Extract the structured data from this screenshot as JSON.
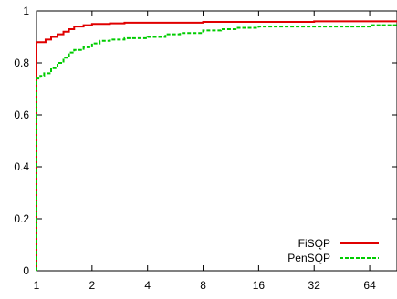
{
  "chart_data": {
    "type": "line",
    "title": "",
    "xlabel": "",
    "ylabel": "",
    "x_scale": "log2",
    "xlim": [
      1,
      90
    ],
    "ylim": [
      0,
      1
    ],
    "x_ticks": [
      1,
      2,
      4,
      8,
      16,
      32,
      64
    ],
    "x_tick_labels": [
      "1",
      "2",
      "4",
      "8",
      "16",
      "32",
      "64"
    ],
    "y_ticks": [
      0,
      0.2,
      0.4,
      0.6,
      0.8,
      1
    ],
    "y_tick_labels": [
      "0",
      "0.2",
      "0.4",
      "0.6",
      "0.8",
      "1"
    ],
    "grid": false,
    "legend_position": "bottom-right",
    "series": [
      {
        "name": "FiSQP",
        "color": "#e00000",
        "dash": "solid",
        "points": [
          [
            1.0,
            0.0
          ],
          [
            1.0,
            0.88
          ],
          [
            1.08,
            0.88
          ],
          [
            1.12,
            0.89
          ],
          [
            1.2,
            0.9
          ],
          [
            1.3,
            0.91
          ],
          [
            1.4,
            0.92
          ],
          [
            1.5,
            0.93
          ],
          [
            1.6,
            0.94
          ],
          [
            1.8,
            0.945
          ],
          [
            2.0,
            0.95
          ],
          [
            2.5,
            0.952
          ],
          [
            3.0,
            0.955
          ],
          [
            4.0,
            0.955
          ],
          [
            8.0,
            0.958
          ],
          [
            16.0,
            0.958
          ],
          [
            32.0,
            0.96
          ],
          [
            90.0,
            0.96
          ]
        ]
      },
      {
        "name": "PenSQP",
        "color": "#00cc00",
        "dash": "dashed",
        "points": [
          [
            1.0,
            0.0
          ],
          [
            1.0,
            0.74
          ],
          [
            1.05,
            0.75
          ],
          [
            1.1,
            0.76
          ],
          [
            1.2,
            0.78
          ],
          [
            1.3,
            0.8
          ],
          [
            1.4,
            0.82
          ],
          [
            1.5,
            0.84
          ],
          [
            1.6,
            0.85
          ],
          [
            1.8,
            0.86
          ],
          [
            2.0,
            0.875
          ],
          [
            2.2,
            0.885
          ],
          [
            2.5,
            0.89
          ],
          [
            3.0,
            0.895
          ],
          [
            4.0,
            0.9
          ],
          [
            5.0,
            0.91
          ],
          [
            6.0,
            0.915
          ],
          [
            8.0,
            0.925
          ],
          [
            10.0,
            0.93
          ],
          [
            12.0,
            0.935
          ],
          [
            16.0,
            0.94
          ],
          [
            32.0,
            0.94
          ],
          [
            64.0,
            0.945
          ],
          [
            90.0,
            0.945
          ]
        ]
      }
    ]
  }
}
